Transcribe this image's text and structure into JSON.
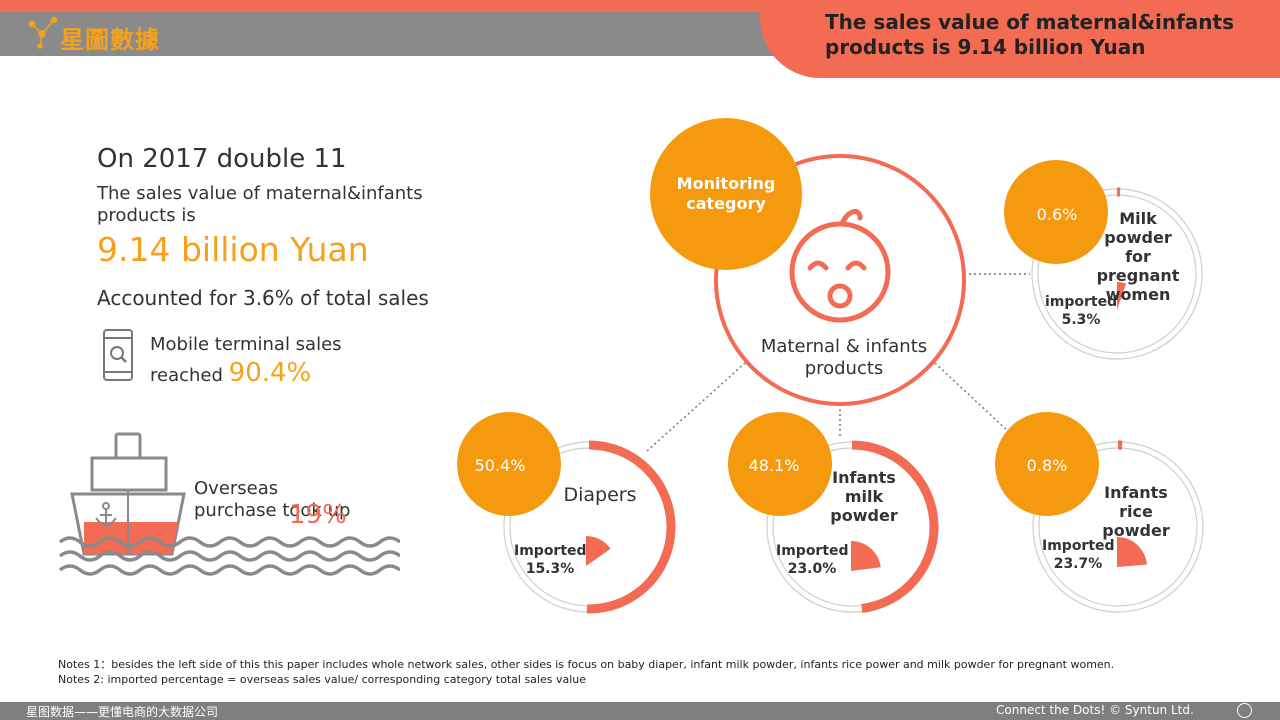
{
  "header": {
    "logo_text": "星圖數據",
    "title": "The sales value of maternal&infants products is 9.14 billion Yuan"
  },
  "summary": {
    "lead": "On 2017 double 11",
    "sales_line": "The sales value of maternal&infants products is",
    "big_value": "9.14 billion Yuan",
    "share_line": "Accounted for 3.6% of total sales",
    "mobile_prefix": "Mobile terminal sales",
    "mobile_reached": "reached",
    "mobile_pct": "90.4%",
    "overseas_text": "Overseas purchase took up",
    "overseas_pct": "19%"
  },
  "chart_data": {
    "type": "pie",
    "center": {
      "monitor_label": "Monitoring category",
      "label": "Maternal & infants products"
    },
    "categories": [
      {
        "name": "Milk powder for pregnant women",
        "share_label": "0.6%",
        "share": 0.6,
        "imported_label": "imported",
        "imported_value": "5.3%",
        "imported": 5.3
      },
      {
        "name": "Diapers",
        "share_label": "50.4%",
        "share": 50.4,
        "imported_label": "Imported",
        "imported_value": "15.3%",
        "imported": 15.3
      },
      {
        "name": "Infants milk powder",
        "share_label": "48.1%",
        "share": 48.1,
        "imported_label": "Imported",
        "imported_value": "23.0%",
        "imported": 23.0
      },
      {
        "name": "Infants rice powder",
        "share_label": "0.8%",
        "share": 0.8,
        "imported_label": "Imported",
        "imported_value": "23.7%",
        "imported": 23.7
      }
    ]
  },
  "notes": {
    "note1": "Notes 1：besides the left side of this this paper includes whole network sales, other sides is focus on baby diaper, infant milk powder, infants rice power and milk powder for pregnant women.",
    "note2": "Notes 2: imported percentage = overseas sales value/ corresponding category total sales value"
  },
  "footer": {
    "left": "星图数据——更懂电商的大数据公司",
    "right": "Connect the Dots! © Syntun Ltd."
  },
  "colors": {
    "accent_orange": "#f59a0e",
    "accent_coral": "#f26b52",
    "gray": "#8a8a8a"
  },
  "icons": [
    "constellation-logo-icon",
    "phone-search-icon",
    "ship-icon",
    "baby-face-icon"
  ]
}
